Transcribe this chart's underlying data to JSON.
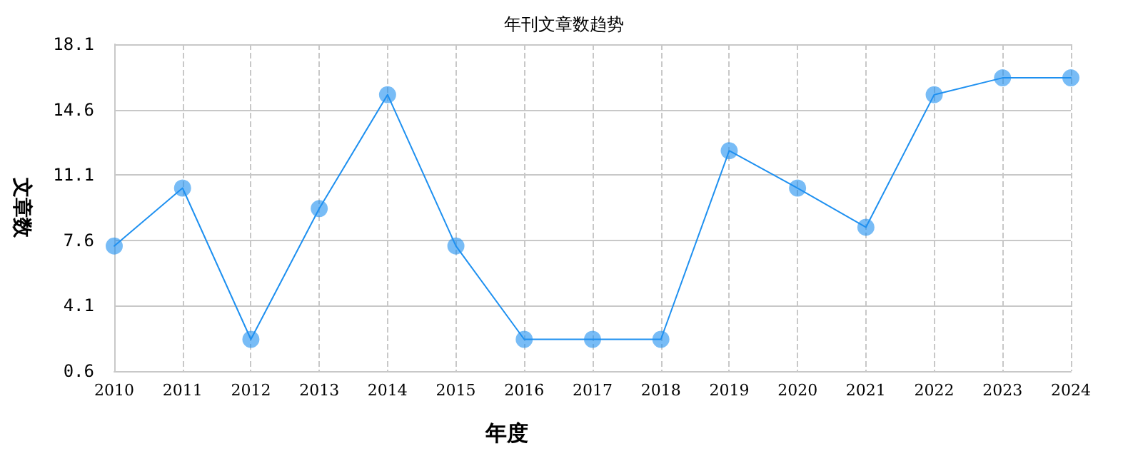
{
  "chart_data": {
    "type": "line",
    "title": "年刊文章数趋势",
    "xlabel": "年度",
    "ylabel": "文章数",
    "categories": [
      "2010",
      "2011",
      "2012",
      "2013",
      "2014",
      "2015",
      "2016",
      "2017",
      "2018",
      "2019",
      "2020",
      "2021",
      "2022",
      "2023",
      "2024"
    ],
    "series": [
      {
        "color": "#1e90f0",
        "values": [
          7.3,
          10.4,
          2.3,
          9.3,
          15.4,
          7.3,
          2.3,
          2.3,
          2.3,
          12.4,
          10.4,
          8.3,
          15.4,
          16.3,
          16.3
        ]
      }
    ],
    "ylim": [
      0.6,
      18.1
    ],
    "yticks": [
      0.6,
      4.1,
      7.6,
      11.1,
      14.6,
      18.1
    ],
    "grid": true,
    "marker": "circle",
    "line_style": "solid"
  }
}
